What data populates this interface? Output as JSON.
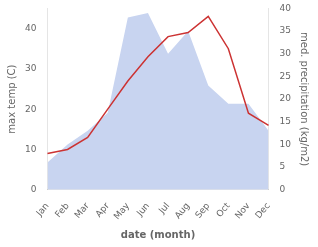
{
  "chart_data": {
    "type": "line",
    "xlabel": "date (month)",
    "ylabel": "max temp (C)",
    "y2label": "med. precipitation (kg/m2)",
    "categories": [
      "Jan",
      "Feb",
      "Mar",
      "Apr",
      "May",
      "Jun",
      "Jul",
      "Aug",
      "Sep",
      "Oct",
      "Nov",
      "Dec"
    ],
    "series": [
      {
        "type": "area",
        "color": "#c8d4f0",
        "axis": "y2",
        "values": [
          6,
          10,
          13,
          17,
          38,
          39,
          30,
          35,
          23,
          19,
          19,
          13
        ]
      },
      {
        "type": "line",
        "color": "#cc3333",
        "values": [
          9,
          10,
          13,
          20,
          27,
          33,
          38,
          39,
          43,
          35,
          19,
          16
        ]
      }
    ],
    "ylim": [
      0,
      45
    ],
    "yticks": [
      0,
      10,
      20,
      30,
      40
    ],
    "y2lim": [
      0,
      40
    ],
    "y2ticks": [
      0,
      5,
      10,
      15,
      20,
      25,
      30,
      35,
      40
    ],
    "grid": false
  }
}
